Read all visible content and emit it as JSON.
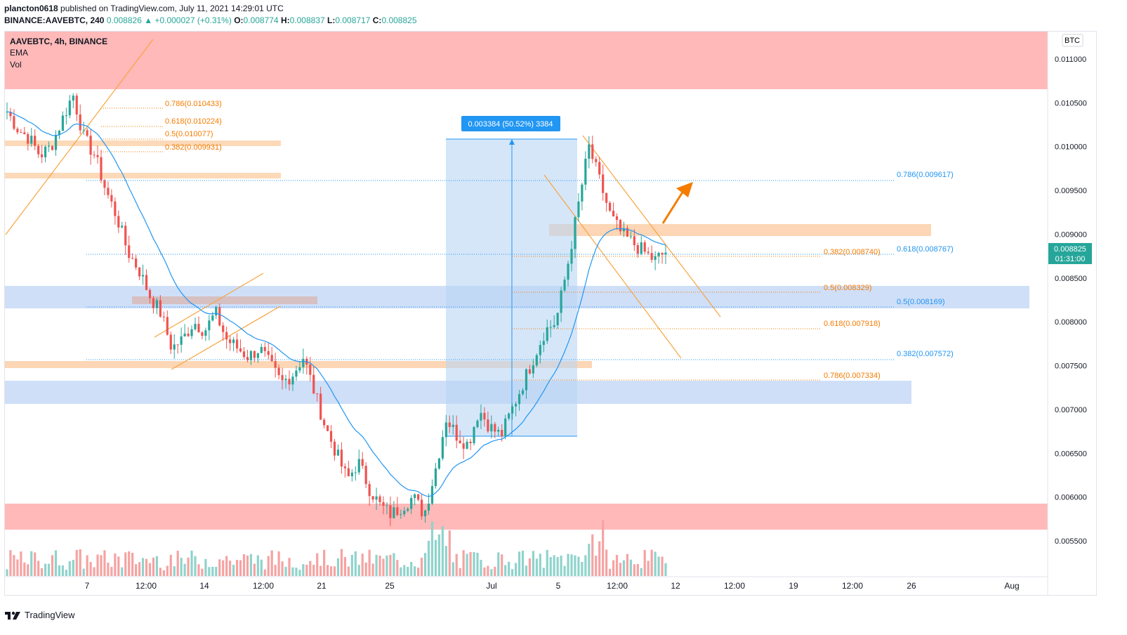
{
  "header": {
    "user": "plancton0618",
    "published_text": "published on TradingView.com, July 11, 2021 14:29:01 UTC",
    "symbol_line": "BINANCE:AAVEBTC, 240",
    "last": "0.008826",
    "change": "▲ +0.000027 (+0.31%)",
    "o_label": "O:",
    "o": "0.008774",
    "h_label": "H:",
    "h": "0.008837",
    "l_label": "L:",
    "l": "0.008717",
    "c_label": "C:",
    "c": "0.008825"
  },
  "legend": {
    "title": "AAVEBTC, 4h, BINANCE",
    "ema": "EMA",
    "vol": "Vol"
  },
  "axis": {
    "currency": "BTC",
    "price_tag": "0.008825",
    "countdown": "01:31:00"
  },
  "measure_label": "0.003384 (50.52%) 3384",
  "footer": {
    "brand": "TradingView"
  },
  "colors": {
    "up": "#26a69a",
    "down": "#ef5350",
    "ema": "#2196f3",
    "resistance_zone": "#ffb3b3",
    "support_zone": "#cdddf7",
    "fib_orange": "#f57c00",
    "fib_blue": "#2196f3"
  },
  "chart_data": {
    "type": "candlestick",
    "title": "AAVEBTC, 4h, BINANCE",
    "ylim": [
      0.0051,
      0.0115
    ],
    "y_ticks": [
      "0.011000",
      "0.010500",
      "0.010000",
      "0.009500",
      "0.009000",
      "0.008500",
      "0.008000",
      "0.007500",
      "0.007000",
      "0.006500",
      "0.006000",
      "0.005500"
    ],
    "x_ticks": [
      "7",
      "12:00",
      "14",
      "12:00",
      "21",
      "25",
      "Jul",
      "5",
      "12:00",
      "12",
      "12:00",
      "19",
      "12:00",
      "26",
      "Aug"
    ],
    "fib_labels_left": [
      "0.786(0.010433)",
      "0.618(0.010224)",
      "0.5(0.010077)",
      "0.382(0.009931)"
    ],
    "fib_labels_orange": [
      "0.382(0.008740)",
      "0.5(0.008329)",
      "0.618(0.007918)",
      "0.786(0.007334)"
    ],
    "fib_labels_blue": [
      "0.786(0.009617)",
      "0.618(0.008767)",
      "0.5(0.008169)",
      "0.382(0.007572)"
    ],
    "close_path": [
      0.0104,
      0.0102,
      0.0101,
      0.0099,
      0.01,
      0.0103,
      0.0106,
      0.0101,
      0.0099,
      0.0095,
      0.0092,
      0.0088,
      0.0086,
      0.0083,
      0.0081,
      0.0077,
      0.0078,
      0.008,
      0.0079,
      0.0081,
      0.0078,
      0.0077,
      0.0076,
      0.0077,
      0.0075,
      0.0073,
      0.0074,
      0.0076,
      0.0072,
      0.0068,
      0.0065,
      0.0062,
      0.0064,
      0.0061,
      0.0059,
      0.0058,
      0.0059,
      0.006,
      0.0058,
      0.0063,
      0.0069,
      0.0067,
      0.0066,
      0.007,
      0.0068,
      0.0067,
      0.007,
      0.0073,
      0.0076,
      0.0079,
      0.008,
      0.0086,
      0.0093,
      0.01,
      0.0096,
      0.0092,
      0.009,
      0.0089,
      0.0088,
      0.0087,
      0.0088
    ]
  }
}
